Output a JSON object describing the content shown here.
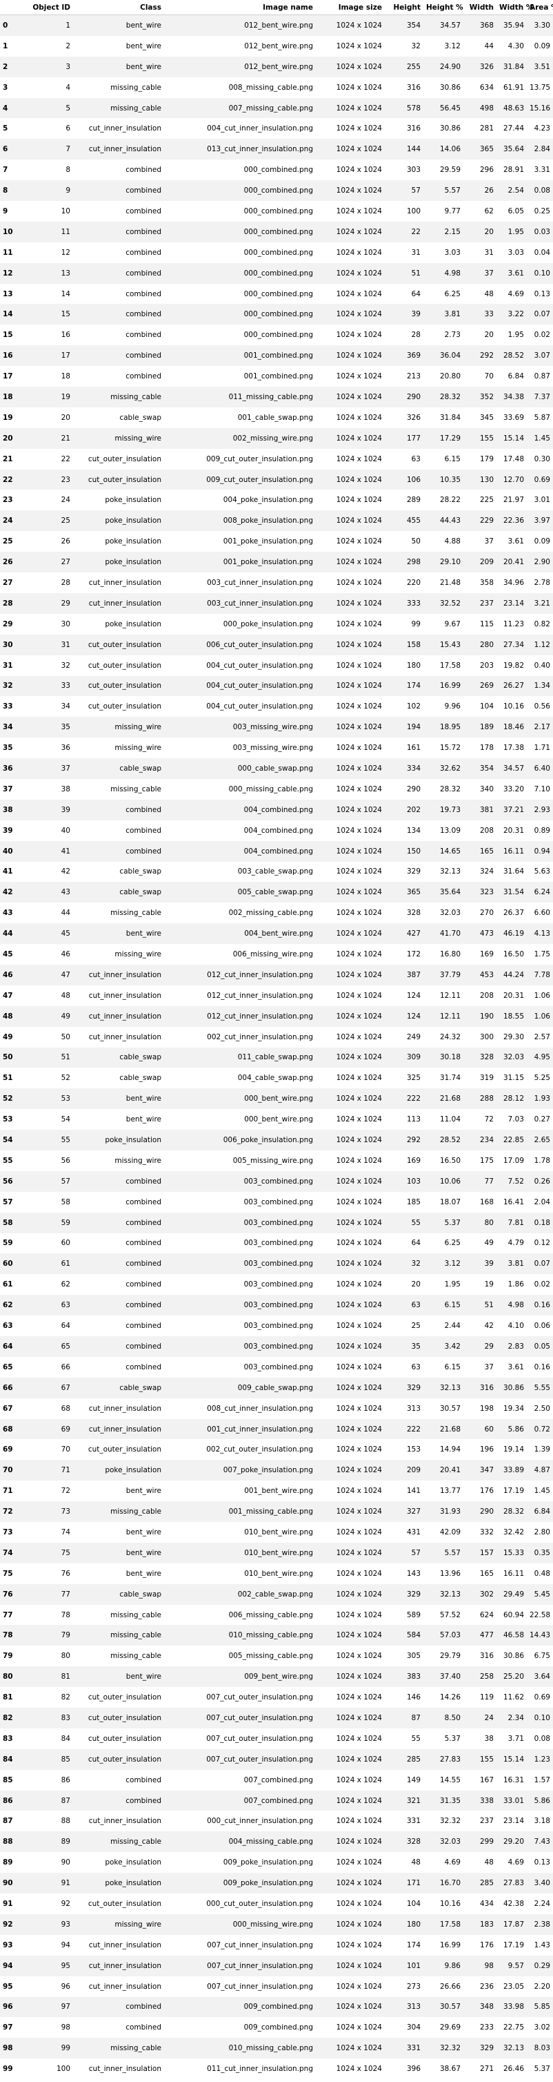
{
  "columns": [
    "",
    "Object ID",
    "Class",
    "Image name",
    "Image size",
    "Height",
    "Height %",
    "Width",
    "Width %",
    "Area %"
  ],
  "rows": [
    [
      0,
      1,
      "bent_wire",
      "012_bent_wire.png",
      "1024 x 1024",
      354,
      "34.57",
      368,
      "35.94",
      "3.30"
    ],
    [
      1,
      2,
      "bent_wire",
      "012_bent_wire.png",
      "1024 x 1024",
      32,
      "3.12",
      44,
      "4.30",
      "0.09"
    ],
    [
      2,
      3,
      "bent_wire",
      "012_bent_wire.png",
      "1024 x 1024",
      255,
      "24.90",
      326,
      "31.84",
      "3.51"
    ],
    [
      3,
      4,
      "missing_cable",
      "008_missing_cable.png",
      "1024 x 1024",
      316,
      "30.86",
      634,
      "61.91",
      "13.75"
    ],
    [
      4,
      5,
      "missing_cable",
      "007_missing_cable.png",
      "1024 x 1024",
      578,
      "56.45",
      498,
      "48.63",
      "15.16"
    ],
    [
      5,
      6,
      "cut_inner_insulation",
      "004_cut_inner_insulation.png",
      "1024 x 1024",
      316,
      "30.86",
      281,
      "27.44",
      "4.23"
    ],
    [
      6,
      7,
      "cut_inner_insulation",
      "013_cut_inner_insulation.png",
      "1024 x 1024",
      144,
      "14.06",
      365,
      "35.64",
      "2.84"
    ],
    [
      7,
      8,
      "combined",
      "000_combined.png",
      "1024 x 1024",
      303,
      "29.59",
      296,
      "28.91",
      "3.31"
    ],
    [
      8,
      9,
      "combined",
      "000_combined.png",
      "1024 x 1024",
      57,
      "5.57",
      26,
      "2.54",
      "0.08"
    ],
    [
      9,
      10,
      "combined",
      "000_combined.png",
      "1024 x 1024",
      100,
      "9.77",
      62,
      "6.05",
      "0.25"
    ],
    [
      10,
      11,
      "combined",
      "000_combined.png",
      "1024 x 1024",
      22,
      "2.15",
      20,
      "1.95",
      "0.03"
    ],
    [
      11,
      12,
      "combined",
      "000_combined.png",
      "1024 x 1024",
      31,
      "3.03",
      31,
      "3.03",
      "0.04"
    ],
    [
      12,
      13,
      "combined",
      "000_combined.png",
      "1024 x 1024",
      51,
      "4.98",
      37,
      "3.61",
      "0.10"
    ],
    [
      13,
      14,
      "combined",
      "000_combined.png",
      "1024 x 1024",
      64,
      "6.25",
      48,
      "4.69",
      "0.13"
    ],
    [
      14,
      15,
      "combined",
      "000_combined.png",
      "1024 x 1024",
      39,
      "3.81",
      33,
      "3.22",
      "0.07"
    ],
    [
      15,
      16,
      "combined",
      "000_combined.png",
      "1024 x 1024",
      28,
      "2.73",
      20,
      "1.95",
      "0.02"
    ],
    [
      16,
      17,
      "combined",
      "001_combined.png",
      "1024 x 1024",
      369,
      "36.04",
      292,
      "28.52",
      "3.07"
    ],
    [
      17,
      18,
      "combined",
      "001_combined.png",
      "1024 x 1024",
      213,
      "20.80",
      70,
      "6.84",
      "0.87"
    ],
    [
      18,
      19,
      "missing_cable",
      "011_missing_cable.png",
      "1024 x 1024",
      290,
      "28.32",
      352,
      "34.38",
      "7.37"
    ],
    [
      19,
      20,
      "cable_swap",
      "001_cable_swap.png",
      "1024 x 1024",
      326,
      "31.84",
      345,
      "33.69",
      "5.87"
    ],
    [
      20,
      21,
      "missing_wire",
      "002_missing_wire.png",
      "1024 x 1024",
      177,
      "17.29",
      155,
      "15.14",
      "1.45"
    ],
    [
      21,
      22,
      "cut_outer_insulation",
      "009_cut_outer_insulation.png",
      "1024 x 1024",
      63,
      "6.15",
      179,
      "17.48",
      "0.30"
    ],
    [
      22,
      23,
      "cut_outer_insulation",
      "009_cut_outer_insulation.png",
      "1024 x 1024",
      106,
      "10.35",
      130,
      "12.70",
      "0.69"
    ],
    [
      23,
      24,
      "poke_insulation",
      "004_poke_insulation.png",
      "1024 x 1024",
      289,
      "28.22",
      225,
      "21.97",
      "3.01"
    ],
    [
      24,
      25,
      "poke_insulation",
      "008_poke_insulation.png",
      "1024 x 1024",
      455,
      "44.43",
      229,
      "22.36",
      "3.97"
    ],
    [
      25,
      26,
      "poke_insulation",
      "001_poke_insulation.png",
      "1024 x 1024",
      50,
      "4.88",
      37,
      "3.61",
      "0.09"
    ],
    [
      26,
      27,
      "poke_insulation",
      "001_poke_insulation.png",
      "1024 x 1024",
      298,
      "29.10",
      209,
      "20.41",
      "2.90"
    ],
    [
      27,
      28,
      "cut_inner_insulation",
      "003_cut_inner_insulation.png",
      "1024 x 1024",
      220,
      "21.48",
      358,
      "34.96",
      "2.78"
    ],
    [
      28,
      29,
      "cut_inner_insulation",
      "003_cut_inner_insulation.png",
      "1024 x 1024",
      333,
      "32.52",
      237,
      "23.14",
      "3.21"
    ],
    [
      29,
      30,
      "poke_insulation",
      "000_poke_insulation.png",
      "1024 x 1024",
      99,
      "9.67",
      115,
      "11.23",
      "0.82"
    ],
    [
      30,
      31,
      "cut_outer_insulation",
      "006_cut_outer_insulation.png",
      "1024 x 1024",
      158,
      "15.43",
      280,
      "27.34",
      "1.12"
    ],
    [
      31,
      32,
      "cut_outer_insulation",
      "004_cut_outer_insulation.png",
      "1024 x 1024",
      180,
      "17.58",
      203,
      "19.82",
      "0.40"
    ],
    [
      32,
      33,
      "cut_outer_insulation",
      "004_cut_outer_insulation.png",
      "1024 x 1024",
      174,
      "16.99",
      269,
      "26.27",
      "1.34"
    ],
    [
      33,
      34,
      "cut_outer_insulation",
      "004_cut_outer_insulation.png",
      "1024 x 1024",
      102,
      "9.96",
      104,
      "10.16",
      "0.56"
    ],
    [
      34,
      35,
      "missing_wire",
      "003_missing_wire.png",
      "1024 x 1024",
      194,
      "18.95",
      189,
      "18.46",
      "2.17"
    ],
    [
      35,
      36,
      "missing_wire",
      "003_missing_wire.png",
      "1024 x 1024",
      161,
      "15.72",
      178,
      "17.38",
      "1.71"
    ],
    [
      36,
      37,
      "cable_swap",
      "000_cable_swap.png",
      "1024 x 1024",
      334,
      "32.62",
      354,
      "34.57",
      "6.40"
    ],
    [
      37,
      38,
      "missing_cable",
      "000_missing_cable.png",
      "1024 x 1024",
      290,
      "28.32",
      340,
      "33.20",
      "7.10"
    ],
    [
      38,
      39,
      "combined",
      "004_combined.png",
      "1024 x 1024",
      202,
      "19.73",
      381,
      "37.21",
      "2.93"
    ],
    [
      39,
      40,
      "combined",
      "004_combined.png",
      "1024 x 1024",
      134,
      "13.09",
      208,
      "20.31",
      "0.89"
    ],
    [
      40,
      41,
      "combined",
      "004_combined.png",
      "1024 x 1024",
      150,
      "14.65",
      165,
      "16.11",
      "0.94"
    ],
    [
      41,
      42,
      "cable_swap",
      "003_cable_swap.png",
      "1024 x 1024",
      329,
      "32.13",
      324,
      "31.64",
      "5.63"
    ],
    [
      42,
      43,
      "cable_swap",
      "005_cable_swap.png",
      "1024 x 1024",
      365,
      "35.64",
      323,
      "31.54",
      "6.24"
    ],
    [
      43,
      44,
      "missing_cable",
      "002_missing_cable.png",
      "1024 x 1024",
      328,
      "32.03",
      270,
      "26.37",
      "6.60"
    ],
    [
      44,
      45,
      "bent_wire",
      "004_bent_wire.png",
      "1024 x 1024",
      427,
      "41.70",
      473,
      "46.19",
      "4.13"
    ],
    [
      45,
      46,
      "missing_wire",
      "006_missing_wire.png",
      "1024 x 1024",
      172,
      "16.80",
      169,
      "16.50",
      "1.75"
    ],
    [
      46,
      47,
      "cut_inner_insulation",
      "012_cut_inner_insulation.png",
      "1024 x 1024",
      387,
      "37.79",
      453,
      "44.24",
      "7.78"
    ],
    [
      47,
      48,
      "cut_inner_insulation",
      "012_cut_inner_insulation.png",
      "1024 x 1024",
      124,
      "12.11",
      208,
      "20.31",
      "1.06"
    ],
    [
      48,
      49,
      "cut_inner_insulation",
      "012_cut_inner_insulation.png",
      "1024 x 1024",
      124,
      "12.11",
      190,
      "18.55",
      "1.06"
    ],
    [
      49,
      50,
      "cut_inner_insulation",
      "002_cut_inner_insulation.png",
      "1024 x 1024",
      249,
      "24.32",
      300,
      "29.30",
      "2.57"
    ],
    [
      50,
      51,
      "cable_swap",
      "011_cable_swap.png",
      "1024 x 1024",
      309,
      "30.18",
      328,
      "32.03",
      "4.95"
    ],
    [
      51,
      52,
      "cable_swap",
      "004_cable_swap.png",
      "1024 x 1024",
      325,
      "31.74",
      319,
      "31.15",
      "5.25"
    ],
    [
      52,
      53,
      "bent_wire",
      "000_bent_wire.png",
      "1024 x 1024",
      222,
      "21.68",
      288,
      "28.12",
      "1.93"
    ],
    [
      53,
      54,
      "bent_wire",
      "000_bent_wire.png",
      "1024 x 1024",
      113,
      "11.04",
      72,
      "7.03",
      "0.27"
    ],
    [
      54,
      55,
      "poke_insulation",
      "006_poke_insulation.png",
      "1024 x 1024",
      292,
      "28.52",
      234,
      "22.85",
      "2.65"
    ],
    [
      55,
      56,
      "missing_wire",
      "005_missing_wire.png",
      "1024 x 1024",
      169,
      "16.50",
      175,
      "17.09",
      "1.78"
    ],
    [
      56,
      57,
      "combined",
      "003_combined.png",
      "1024 x 1024",
      103,
      "10.06",
      77,
      "7.52",
      "0.26"
    ],
    [
      57,
      58,
      "combined",
      "003_combined.png",
      "1024 x 1024",
      185,
      "18.07",
      168,
      "16.41",
      "2.04"
    ],
    [
      58,
      59,
      "combined",
      "003_combined.png",
      "1024 x 1024",
      55,
      "5.37",
      80,
      "7.81",
      "0.18"
    ],
    [
      59,
      60,
      "combined",
      "003_combined.png",
      "1024 x 1024",
      64,
      "6.25",
      49,
      "4.79",
      "0.12"
    ],
    [
      60,
      61,
      "combined",
      "003_combined.png",
      "1024 x 1024",
      32,
      "3.12",
      39,
      "3.81",
      "0.07"
    ],
    [
      61,
      62,
      "combined",
      "003_combined.png",
      "1024 x 1024",
      20,
      "1.95",
      19,
      "1.86",
      "0.02"
    ],
    [
      62,
      63,
      "combined",
      "003_combined.png",
      "1024 x 1024",
      63,
      "6.15",
      51,
      "4.98",
      "0.16"
    ],
    [
      63,
      64,
      "combined",
      "003_combined.png",
      "1024 x 1024",
      25,
      "2.44",
      42,
      "4.10",
      "0.06"
    ],
    [
      64,
      65,
      "combined",
      "003_combined.png",
      "1024 x 1024",
      35,
      "3.42",
      29,
      "2.83",
      "0.05"
    ],
    [
      65,
      66,
      "combined",
      "003_combined.png",
      "1024 x 1024",
      63,
      "6.15",
      37,
      "3.61",
      "0.16"
    ],
    [
      66,
      67,
      "cable_swap",
      "009_cable_swap.png",
      "1024 x 1024",
      329,
      "32.13",
      316,
      "30.86",
      "5.55"
    ],
    [
      67,
      68,
      "cut_inner_insulation",
      "008_cut_inner_insulation.png",
      "1024 x 1024",
      313,
      "30.57",
      198,
      "19.34",
      "2.50"
    ],
    [
      68,
      69,
      "cut_inner_insulation",
      "001_cut_inner_insulation.png",
      "1024 x 1024",
      222,
      "21.68",
      60,
      "5.86",
      "0.72"
    ],
    [
      69,
      70,
      "cut_outer_insulation",
      "002_cut_outer_insulation.png",
      "1024 x 1024",
      153,
      "14.94",
      196,
      "19.14",
      "1.39"
    ],
    [
      70,
      71,
      "poke_insulation",
      "007_poke_insulation.png",
      "1024 x 1024",
      209,
      "20.41",
      347,
      "33.89",
      "4.87"
    ],
    [
      71,
      72,
      "bent_wire",
      "001_bent_wire.png",
      "1024 x 1024",
      141,
      "13.77",
      176,
      "17.19",
      "1.45"
    ],
    [
      72,
      73,
      "missing_cable",
      "001_missing_cable.png",
      "1024 x 1024",
      327,
      "31.93",
      290,
      "28.32",
      "6.84"
    ],
    [
      73,
      74,
      "bent_wire",
      "010_bent_wire.png",
      "1024 x 1024",
      431,
      "42.09",
      332,
      "32.42",
      "2.80"
    ],
    [
      74,
      75,
      "bent_wire",
      "010_bent_wire.png",
      "1024 x 1024",
      57,
      "5.57",
      157,
      "15.33",
      "0.35"
    ],
    [
      75,
      76,
      "bent_wire",
      "010_bent_wire.png",
      "1024 x 1024",
      143,
      "13.96",
      165,
      "16.11",
      "0.48"
    ],
    [
      76,
      77,
      "cable_swap",
      "002_cable_swap.png",
      "1024 x 1024",
      329,
      "32.13",
      302,
      "29.49",
      "5.45"
    ],
    [
      77,
      78,
      "missing_cable",
      "006_missing_cable.png",
      "1024 x 1024",
      589,
      "57.52",
      624,
      "60.94",
      "22.58"
    ],
    [
      78,
      79,
      "missing_cable",
      "010_missing_cable.png",
      "1024 x 1024",
      584,
      "57.03",
      477,
      "46.58",
      "14.43"
    ],
    [
      79,
      80,
      "missing_cable",
      "005_missing_cable.png",
      "1024 x 1024",
      305,
      "29.79",
      316,
      "30.86",
      "6.75"
    ],
    [
      80,
      81,
      "bent_wire",
      "009_bent_wire.png",
      "1024 x 1024",
      383,
      "37.40",
      258,
      "25.20",
      "3.64"
    ],
    [
      81,
      82,
      "cut_outer_insulation",
      "007_cut_outer_insulation.png",
      "1024 x 1024",
      146,
      "14.26",
      119,
      "11.62",
      "0.69"
    ],
    [
      82,
      83,
      "cut_outer_insulation",
      "007_cut_outer_insulation.png",
      "1024 x 1024",
      87,
      "8.50",
      24,
      "2.34",
      "0.10"
    ],
    [
      83,
      84,
      "cut_outer_insulation",
      "007_cut_outer_insulation.png",
      "1024 x 1024",
      55,
      "5.37",
      38,
      "3.71",
      "0.08"
    ],
    [
      84,
      85,
      "cut_outer_insulation",
      "007_cut_outer_insulation.png",
      "1024 x 1024",
      285,
      "27.83",
      155,
      "15.14",
      "1.23"
    ],
    [
      85,
      86,
      "combined",
      "007_combined.png",
      "1024 x 1024",
      149,
      "14.55",
      167,
      "16.31",
      "1.57"
    ],
    [
      86,
      87,
      "combined",
      "007_combined.png",
      "1024 x 1024",
      321,
      "31.35",
      338,
      "33.01",
      "5.86"
    ],
    [
      87,
      88,
      "cut_inner_insulation",
      "000_cut_inner_insulation.png",
      "1024 x 1024",
      331,
      "32.32",
      237,
      "23.14",
      "3.18"
    ],
    [
      88,
      89,
      "missing_cable",
      "004_missing_cable.png",
      "1024 x 1024",
      328,
      "32.03",
      299,
      "29.20",
      "7.43"
    ],
    [
      89,
      90,
      "poke_insulation",
      "009_poke_insulation.png",
      "1024 x 1024",
      48,
      "4.69",
      48,
      "4.69",
      "0.13"
    ],
    [
      90,
      91,
      "poke_insulation",
      "009_poke_insulation.png",
      "1024 x 1024",
      171,
      "16.70",
      285,
      "27.83",
      "3.40"
    ],
    [
      91,
      92,
      "cut_outer_insulation",
      "000_cut_outer_insulation.png",
      "1024 x 1024",
      104,
      "10.16",
      434,
      "42.38",
      "2.24"
    ],
    [
      92,
      93,
      "missing_wire",
      "000_missing_wire.png",
      "1024 x 1024",
      180,
      "17.58",
      183,
      "17.87",
      "2.38"
    ],
    [
      93,
      94,
      "cut_inner_insulation",
      "007_cut_inner_insulation.png",
      "1024 x 1024",
      174,
      "16.99",
      176,
      "17.19",
      "1.43"
    ],
    [
      94,
      95,
      "cut_inner_insulation",
      "007_cut_inner_insulation.png",
      "1024 x 1024",
      101,
      "9.86",
      98,
      "9.57",
      "0.29"
    ],
    [
      95,
      96,
      "cut_inner_insulation",
      "007_cut_inner_insulation.png",
      "1024 x 1024",
      273,
      "26.66",
      236,
      "23.05",
      "2.20"
    ],
    [
      96,
      97,
      "combined",
      "009_combined.png",
      "1024 x 1024",
      313,
      "30.57",
      348,
      "33.98",
      "5.85"
    ],
    [
      97,
      98,
      "combined",
      "009_combined.png",
      "1024 x 1024",
      304,
      "29.69",
      233,
      "22.75",
      "3.02"
    ],
    [
      98,
      99,
      "missing_cable",
      "010_missing_cable.png",
      "1024 x 1024",
      331,
      "32.32",
      329,
      "32.13",
      "8.03"
    ],
    [
      99,
      100,
      "cut_inner_insulation",
      "011_cut_inner_insulation.png",
      "1024 x 1024",
      396,
      "38.67",
      271,
      "26.46",
      "5.37"
    ]
  ]
}
